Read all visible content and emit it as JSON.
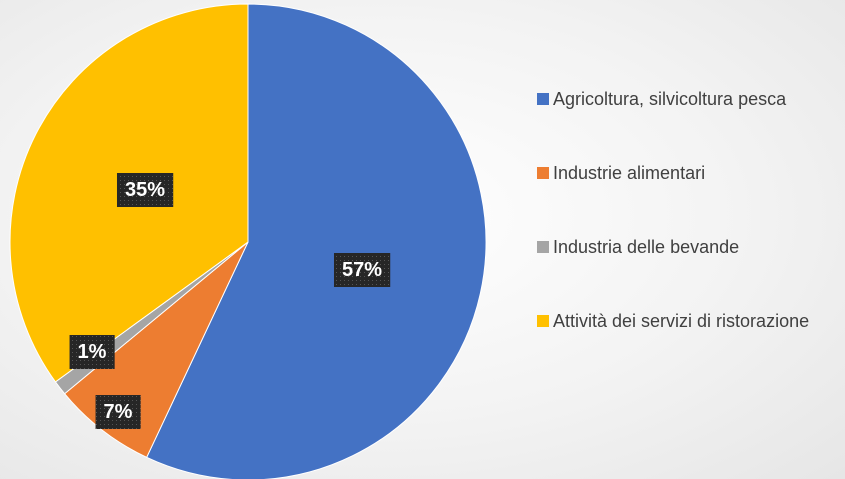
{
  "chart_data": {
    "type": "pie",
    "categories": [
      "Agricoltura, silvicoltura pesca",
      "Industrie alimentari",
      "Industria delle bevande",
      "Attività dei servizi di ristorazione"
    ],
    "values": [
      57,
      7,
      1,
      35
    ],
    "value_labels": [
      "57%",
      "7%",
      "1%",
      "35%"
    ],
    "colors": [
      "#4472c4",
      "#ed7d31",
      "#a5a5a5",
      "#ffc000"
    ],
    "legend": "right"
  }
}
